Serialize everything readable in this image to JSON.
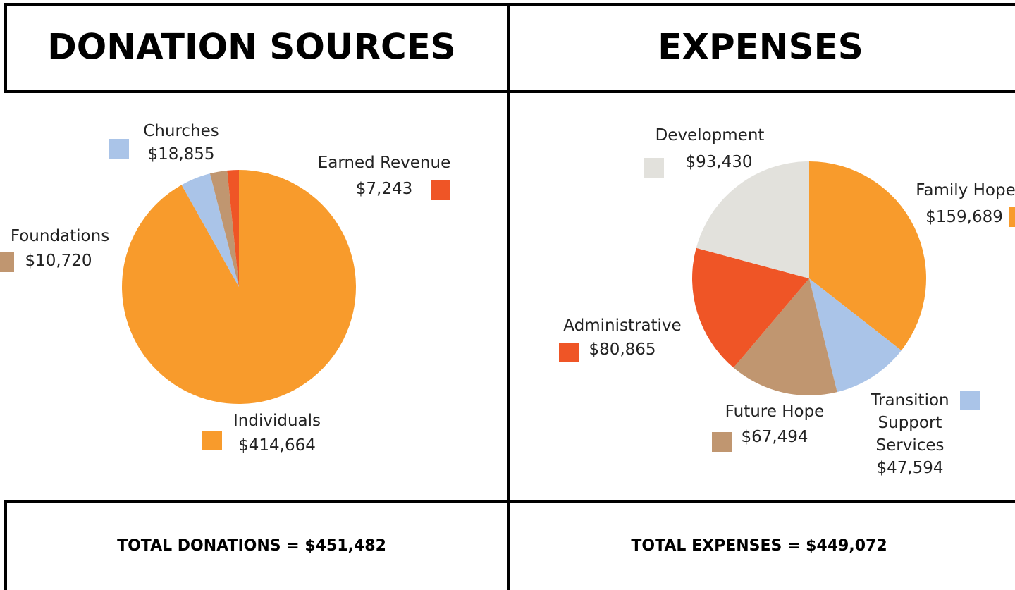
{
  "chart_data": [
    {
      "type": "pie",
      "title": "DONATION SOURCES",
      "categories": [
        "Individuals",
        "Churches",
        "Foundations",
        "Earned Revenue"
      ],
      "values": [
        414664,
        18855,
        10720,
        7243
      ],
      "value_labels": [
        "$414,664",
        "$18,855",
        "$10,720",
        "$7,243"
      ],
      "colors": [
        "#f89b2c",
        "#aac4e8",
        "#c09670",
        "#ef5526"
      ],
      "total": "TOTAL DONATIONS = $451,482"
    },
    {
      "type": "pie",
      "title": "EXPENSES",
      "categories": [
        "Family Hope",
        "Transition Support Services",
        "Future Hope",
        "Administrative",
        "Development"
      ],
      "values": [
        159689,
        47594,
        67494,
        80865,
        93430
      ],
      "value_labels": [
        "$159,689",
        "$47,594",
        "$67,494",
        "$80,865",
        "$93,430"
      ],
      "colors": [
        "#f89b2c",
        "#aac4e8",
        "#c09670",
        "#ef5526",
        "#e2e1dc"
      ],
      "total": "TOTAL EXPENSES = $449,072"
    }
  ]
}
